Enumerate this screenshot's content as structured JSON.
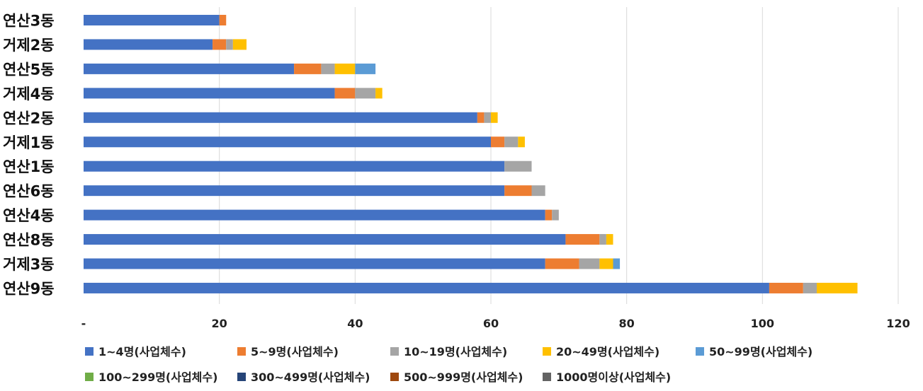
{
  "chart_data": {
    "type": "bar",
    "orientation": "horizontal",
    "stacked": true,
    "categories": [
      "연산3동",
      "거제2동",
      "연산5동",
      "거제4동",
      "연산2동",
      "거제1동",
      "연산1동",
      "연산6동",
      "연산4동",
      "연산8동",
      "거제3동",
      "연산9동"
    ],
    "series": [
      {
        "name": "1~4명(사업체수)",
        "color": "#4472C4",
        "values": [
          20,
          19,
          31,
          37,
          58,
          60,
          62,
          62,
          68,
          71,
          68,
          101
        ]
      },
      {
        "name": "5~9명(사업체수)",
        "color": "#ED7D31",
        "values": [
          1,
          2,
          4,
          3,
          1,
          2,
          0,
          4,
          1,
          5,
          5,
          5
        ]
      },
      {
        "name": "10~19명(사업체수)",
        "color": "#A5A5A5",
        "values": [
          0,
          1,
          2,
          3,
          1,
          2,
          4,
          2,
          1,
          1,
          3,
          2
        ]
      },
      {
        "name": "20~49명(사업체수)",
        "color": "#FFC000",
        "values": [
          0,
          2,
          3,
          1,
          1,
          1,
          0,
          0,
          0,
          1,
          2,
          6
        ]
      },
      {
        "name": "50~99명(사업체수)",
        "color": "#5B9BD5",
        "values": [
          0,
          0,
          3,
          0,
          0,
          0,
          0,
          0,
          0,
          0,
          1,
          0
        ]
      },
      {
        "name": "100~299명(사업체수)",
        "color": "#70AD47",
        "values": [
          0,
          0,
          0,
          0,
          0,
          0,
          0,
          0,
          0,
          0,
          0,
          0
        ]
      },
      {
        "name": "300~499명(사업체수)",
        "color": "#264478",
        "values": [
          0,
          0,
          0,
          0,
          0,
          0,
          0,
          0,
          0,
          0,
          0,
          0
        ]
      },
      {
        "name": "500~999명(사업체수)",
        "color": "#9E480E",
        "values": [
          0,
          0,
          0,
          0,
          0,
          0,
          0,
          0,
          0,
          0,
          0,
          0
        ]
      },
      {
        "name": "1000명이상(사업체수)",
        "color": "#636363",
        "values": [
          0,
          0,
          0,
          0,
          0,
          0,
          0,
          0,
          0,
          0,
          0,
          0
        ]
      }
    ],
    "xlim": [
      0,
      120
    ],
    "x_ticks": [
      0,
      20,
      40,
      60,
      80,
      100,
      120
    ],
    "x_tick_labels": [
      "-",
      "20",
      "40",
      "60",
      "80",
      "100",
      "120"
    ],
    "grid": true,
    "legend_position": "bottom"
  }
}
